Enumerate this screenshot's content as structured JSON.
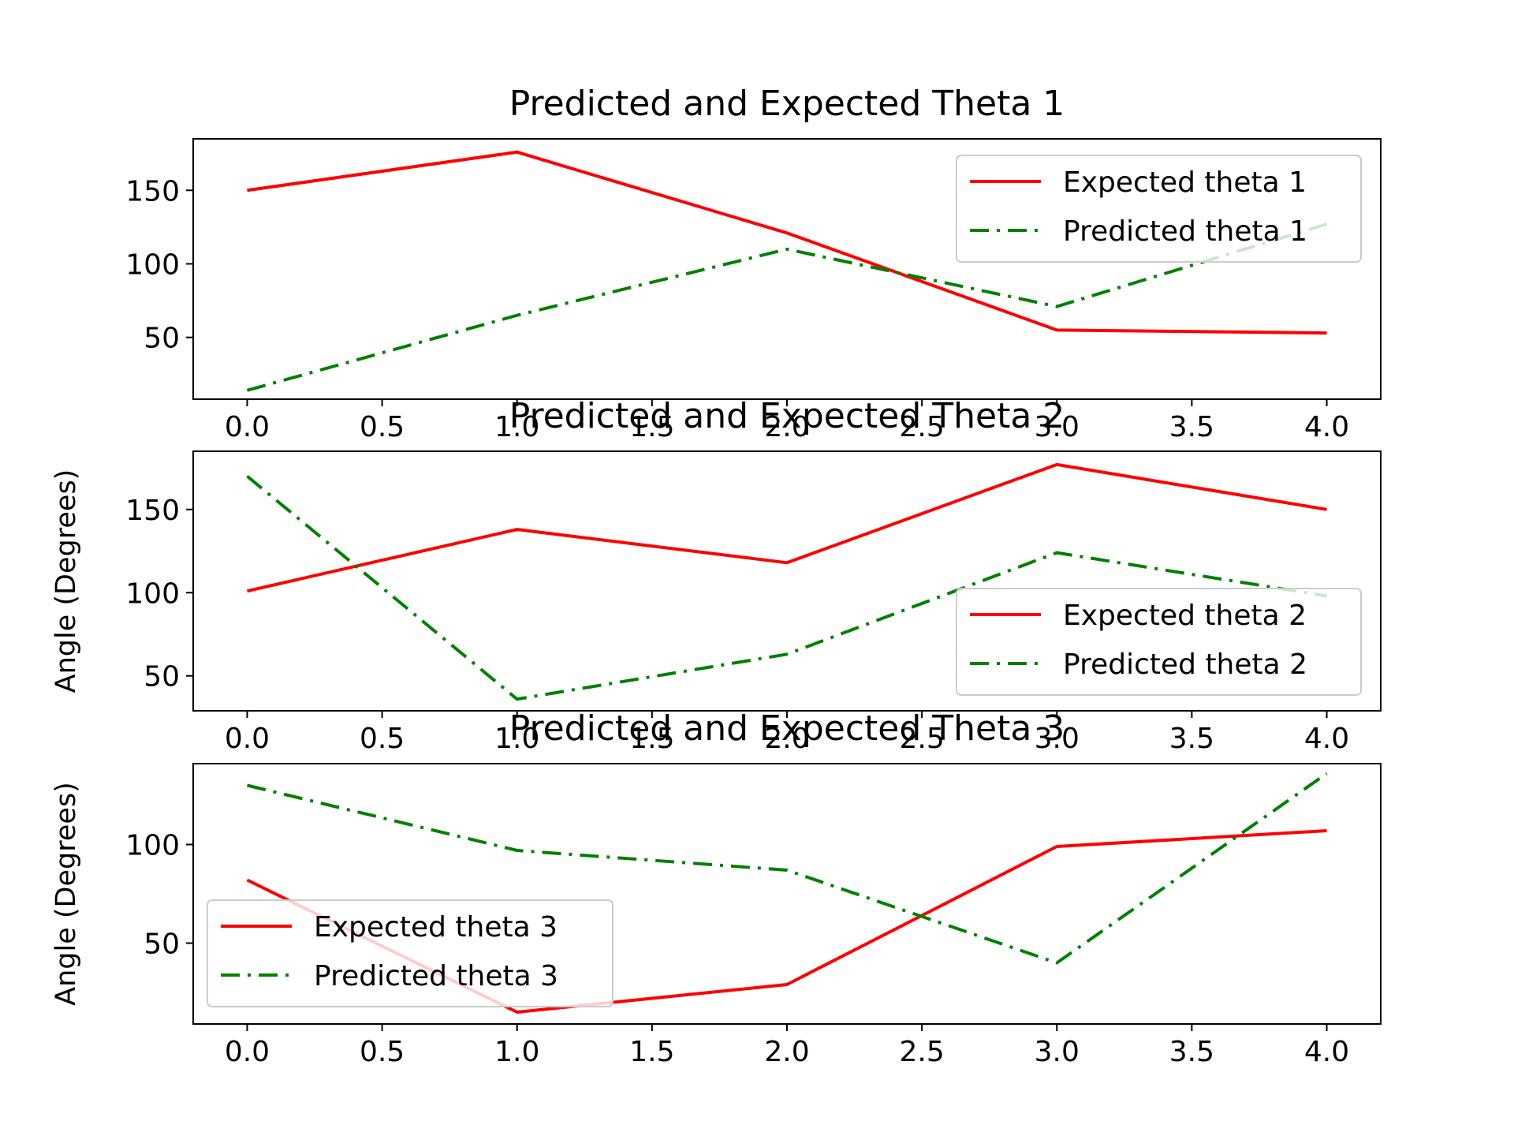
{
  "chart_data": [
    {
      "type": "line",
      "title": "Predicted and Expected Theta 1",
      "xlabel": "",
      "ylabel": "",
      "xlim": [
        -0.2,
        4.2
      ],
      "ylim": [
        8,
        185
      ],
      "x_ticks": [
        "0.0",
        "0.5",
        "1.0",
        "1.5",
        "2.0",
        "2.5",
        "3.0",
        "3.5",
        "4.0"
      ],
      "y_ticks": [
        "50",
        "100",
        "150"
      ],
      "legend_position": "upper right",
      "x": [
        0,
        1,
        2,
        3,
        4
      ],
      "series": [
        {
          "name": "Expected theta 1",
          "color": "#ff0000",
          "style": "solid",
          "values": [
            150,
            176,
            121,
            55,
            53
          ]
        },
        {
          "name": "Predicted theta 1",
          "color": "#008000",
          "style": "dashdot",
          "values": [
            14,
            65,
            110,
            71,
            127
          ]
        }
      ]
    },
    {
      "type": "line",
      "title": "Predicted and Expected Theta 2",
      "xlabel": "",
      "ylabel": "Angle (Degrees)",
      "xlim": [
        -0.2,
        4.2
      ],
      "ylim": [
        29,
        185
      ],
      "x_ticks": [
        "0.0",
        "0.5",
        "1.0",
        "1.5",
        "2.0",
        "2.5",
        "3.0",
        "3.5",
        "4.0"
      ],
      "y_ticks": [
        "50",
        "100",
        "150"
      ],
      "legend_position": "lower right",
      "x": [
        0,
        1,
        2,
        3,
        4
      ],
      "series": [
        {
          "name": "Expected theta 2",
          "color": "#ff0000",
          "style": "solid",
          "values": [
            101,
            138,
            118,
            177,
            150
          ]
        },
        {
          "name": "Predicted theta 2",
          "color": "#008000",
          "style": "dashdot",
          "values": [
            170,
            36,
            63,
            124,
            98
          ]
        }
      ]
    },
    {
      "type": "line",
      "title": "Predicted and Expected Theta 3",
      "xlabel": "",
      "ylabel": "Angle (Degrees)",
      "xlim": [
        -0.2,
        4.2
      ],
      "ylim": [
        9,
        141
      ],
      "x_ticks": [
        "0.0",
        "0.5",
        "1.0",
        "1.5",
        "2.0",
        "2.5",
        "3.0",
        "3.5",
        "4.0"
      ],
      "y_ticks": [
        "50",
        "100"
      ],
      "legend_position": "lower left",
      "x": [
        0,
        1,
        2,
        3,
        4
      ],
      "series": [
        {
          "name": "Expected theta 3",
          "color": "#ff0000",
          "style": "solid",
          "values": [
            82,
            15,
            29,
            99,
            107
          ]
        },
        {
          "name": "Predicted theta 3",
          "color": "#008000",
          "style": "dashdot",
          "values": [
            130,
            97,
            87,
            40,
            136
          ]
        }
      ]
    }
  ]
}
